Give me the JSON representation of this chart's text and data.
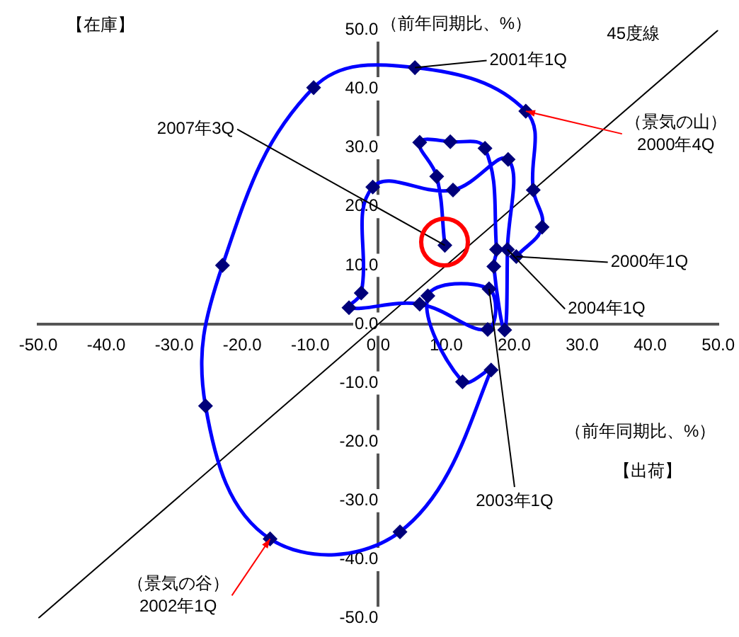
{
  "chart_data": {
    "type": "line",
    "xlabel": "【出荷】",
    "ylabel": "【在庫】",
    "xlim": [
      -50,
      50
    ],
    "ylim": [
      -50,
      50
    ],
    "xticks": [
      {
        "value": -50,
        "label": "-50.0"
      },
      {
        "value": -40,
        "label": "-40.0"
      },
      {
        "value": -30,
        "label": "-30.0"
      },
      {
        "value": -20,
        "label": "-20.0"
      },
      {
        "value": -10,
        "label": "-10.0"
      },
      {
        "value": 0,
        "label": "0.0"
      },
      {
        "value": 10,
        "label": "10.0"
      },
      {
        "value": 20,
        "label": "20.0"
      },
      {
        "value": 30,
        "label": "30.0"
      },
      {
        "value": 40,
        "label": "40.0"
      },
      {
        "value": 50,
        "label": "50.0"
      }
    ],
    "yticks": [
      {
        "value": -50,
        "label": "-50.0"
      },
      {
        "value": -40,
        "label": "-40.0"
      },
      {
        "value": -30,
        "label": "-30.0"
      },
      {
        "value": -20,
        "label": "-20.0"
      },
      {
        "value": -10,
        "label": "-10.0"
      },
      {
        "value": 0,
        "label": "0.0"
      },
      {
        "value": 10,
        "label": "10.0"
      },
      {
        "value": 20,
        "label": "20.0"
      },
      {
        "value": 30,
        "label": "30.0"
      },
      {
        "value": 40,
        "label": "40.0"
      },
      {
        "value": 50,
        "label": "50.0"
      }
    ],
    "series": [
      {
        "color": "#0000ff",
        "marker": "diamond",
        "x": [
          20.3,
          24.1,
          22.8,
          21.7,
          5.4,
          -9.5,
          -22.9,
          -25.4,
          -15.9,
          3.2,
          16.6,
          12.4,
          7.3,
          16.3,
          16.1,
          6.1,
          -4.3,
          -2.5,
          -0.8,
          11.0,
          19.1,
          19.0,
          18.6,
          17.0,
          17.4,
          15.7,
          10.6,
          6.1,
          8.6,
          9.8
        ],
        "values": [
          11.5,
          16.5,
          22.8,
          36.2,
          43.6,
          40.2,
          10.0,
          -13.9,
          -36.5,
          -35.3,
          -7.8,
          -9.8,
          4.8,
          6.0,
          -0.9,
          3.4,
          2.8,
          5.3,
          23.3,
          22.8,
          28.0,
          12.7,
          -1.0,
          9.8,
          12.7,
          29.9,
          31.0,
          30.9,
          25.1,
          13.4
        ]
      },
      {
        "name": "45度線",
        "color": "#000000",
        "marker": "none",
        "x": [
          -50,
          50
        ],
        "values": [
          -50,
          50
        ]
      }
    ],
    "annotations": [
      {
        "text": "2001年1Q",
        "x": 5.4,
        "y": 43.6
      },
      {
        "text": "（景気の山）\n2000年4Q",
        "x": 21.7,
        "y": 36.2
      },
      {
        "text": "2007年3Q",
        "x": 9.8,
        "y": 13.4
      },
      {
        "text": "2000年1Q",
        "x": 20.3,
        "y": 11.5
      },
      {
        "text": "2004年1Q",
        "x": 19.0,
        "y": 12.7
      },
      {
        "text": "2003年1Q",
        "x": 16.3,
        "y": 6.0
      },
      {
        "text": "（景気の谷）\n2002年1Q",
        "x": -15.9,
        "y": -36.5
      },
      "（前年同期比、%）",
      "（前年同期比、%）"
    ],
    "legend": false,
    "grid": false
  }
}
